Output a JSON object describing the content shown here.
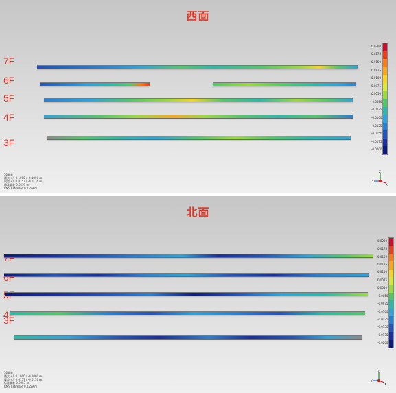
{
  "panels": [
    {
      "id": "west",
      "title": "西面",
      "floors": [
        "7F",
        "6F",
        "5F",
        "4F",
        "3F"
      ],
      "colorbar_ticks": [
        "0.0200",
        "0.0175",
        "0.0150",
        "0.0125",
        "0.0100",
        "0.0075",
        "0.0050",
        "-0.0050",
        "-0.0075",
        "-0.0100",
        "-0.0125",
        "-0.0150",
        "-0.0175",
        "-0.0200"
      ],
      "stats": [
        "30偏差",
        "最大 +/- 0.1000 / -0.1000 m",
        "误差 +/- 0.0157 / -0.0176 m",
        "标准偏差 0.0253 m",
        "RMS Estimate 0.0259 m"
      ],
      "axes": {
        "z": "Z",
        "y": "Y",
        "x": "X"
      }
    },
    {
      "id": "north",
      "title": "北面",
      "floors": [
        "7F",
        "6F",
        "5F",
        "4F",
        "3F"
      ],
      "colorbar_ticks": [
        "0.0200",
        "0.0175",
        "0.0150",
        "0.0125",
        "0.0100",
        "0.0075",
        "0.0050",
        "-0.0050",
        "-0.0075",
        "-0.0100",
        "-0.0125",
        "-0.0150",
        "-0.0175",
        "-0.0200"
      ],
      "stats": [
        "30偏差",
        "最大 +/- 0.1000 / -0.1000 m",
        "误差 +/- 0.0157 / -0.0176 m",
        "标准偏差 0.0253 m",
        "RMS Estimate 0.0259 m"
      ],
      "axes": {
        "z": "Z",
        "y": "Y",
        "x": "X"
      }
    }
  ],
  "colors": {
    "title_red": "#e23a2a",
    "scale": [
      "#c8102e",
      "#e8401e",
      "#f57c1a",
      "#f7a81e",
      "#f5d327",
      "#d9e73a",
      "#9bd93f",
      "#54c66a",
      "#2fb8a8",
      "#31a3d9",
      "#2b7fd0",
      "#2454b8",
      "#1b2f9e",
      "#101a78"
    ]
  }
}
